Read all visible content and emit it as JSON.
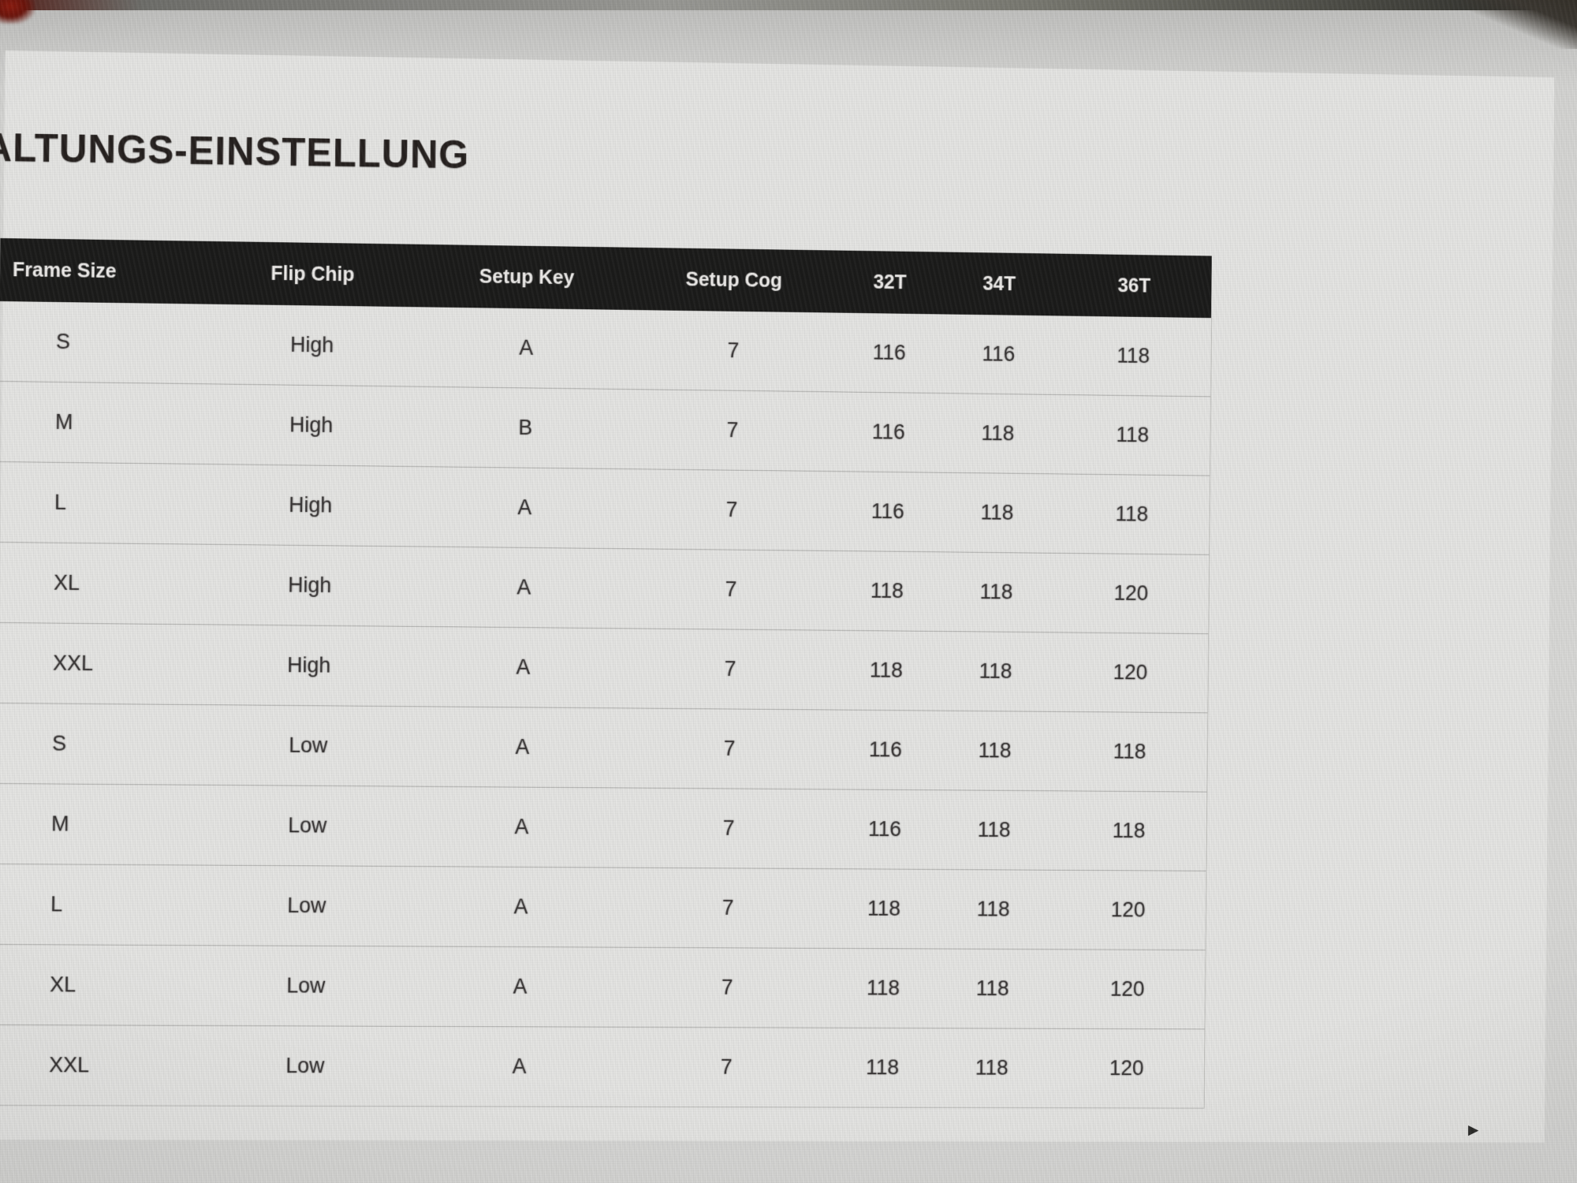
{
  "page": {
    "title": "ALTUNGS-EINSTELLUNG"
  },
  "table": {
    "columns": [
      "Frame Size",
      "Flip Chip",
      "Setup Key",
      "Setup Cog",
      "32T",
      "34T",
      "36T"
    ],
    "rows": [
      [
        "S",
        "High",
        "A",
        "7",
        "116",
        "116",
        "118"
      ],
      [
        "M",
        "High",
        "B",
        "7",
        "116",
        "118",
        "118"
      ],
      [
        "L",
        "High",
        "A",
        "7",
        "116",
        "118",
        "118"
      ],
      [
        "XL",
        "High",
        "A",
        "7",
        "118",
        "118",
        "120"
      ],
      [
        "XXL",
        "High",
        "A",
        "7",
        "118",
        "118",
        "120"
      ],
      [
        "S",
        "Low",
        "A",
        "7",
        "116",
        "118",
        "118"
      ],
      [
        "M",
        "Low",
        "A",
        "7",
        "116",
        "118",
        "118"
      ],
      [
        "L",
        "Low",
        "A",
        "7",
        "118",
        "118",
        "120"
      ],
      [
        "XL",
        "Low",
        "A",
        "7",
        "118",
        "118",
        "120"
      ],
      [
        "XXL",
        "Low",
        "A",
        "7",
        "118",
        "118",
        "120"
      ]
    ]
  },
  "icons": {
    "scroll_right_arrow": "▶"
  },
  "colors": {
    "table_header_bg": "#1b1b1a",
    "table_header_text": "#edebe9",
    "body_text": "#333030",
    "page_bg": "#e4e4e2"
  }
}
